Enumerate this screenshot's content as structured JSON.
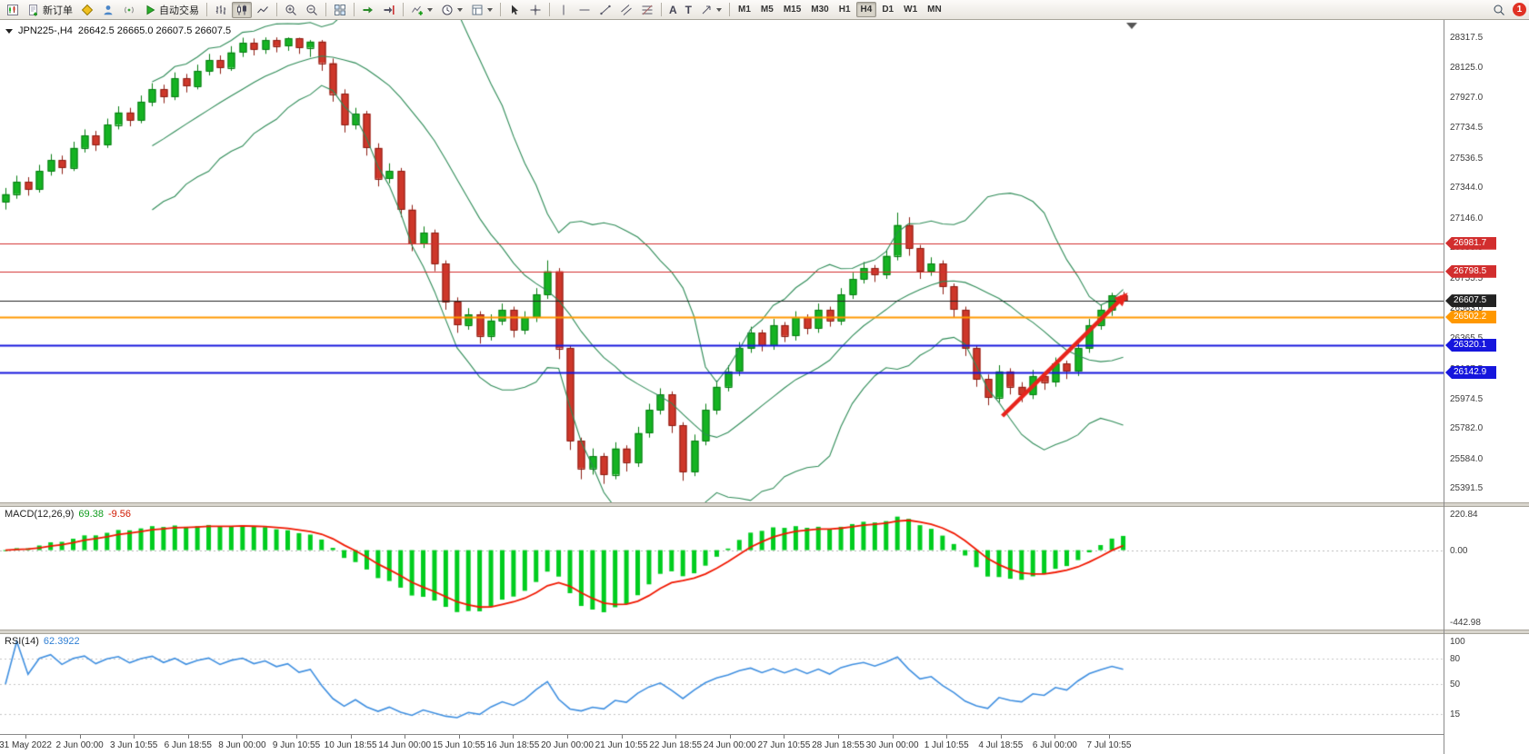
{
  "toolbar": {
    "new_order": "新订单",
    "autotrading": "自动交易",
    "text_tool": "A",
    "label_tool": "T",
    "timeframes": [
      "M1",
      "M5",
      "M15",
      "M30",
      "H1",
      "H4",
      "D1",
      "W1",
      "MN"
    ],
    "active_timeframe": "H4",
    "notification_count": "1"
  },
  "chart_data": {
    "type": "candlestick",
    "title": "JPN225-,H4",
    "ohlc_display": "26642.5 26665.0 26607.5 26607.5",
    "ylim": [
      25391.5,
      28317.5
    ],
    "y_axis_labels": [
      "28317.5",
      "28125.0",
      "27927.0",
      "27734.5",
      "27536.5",
      "27344.0",
      "27146.0",
      "26953.5",
      "26755.5",
      "26563.0",
      "26365.5",
      "26167.5",
      "25974.5",
      "25782.0",
      "25584.0",
      "25391.5"
    ],
    "x_labels": [
      "31 May 2022",
      "2 Jun 00:00",
      "3 Jun 10:55",
      "6 Jun 18:55",
      "8 Jun 00:00",
      "9 Jun 10:55",
      "10 Jun 18:55",
      "14 Jun 00:00",
      "15 Jun 10:55",
      "16 Jun 18:55",
      "20 Jun 00:00",
      "21 Jun 10:55",
      "22 Jun 18:55",
      "24 Jun 00:00",
      "27 Jun 10:55",
      "28 Jun 18:55",
      "30 Jun 00:00",
      "1 Jul 10:55",
      "4 Jul 18:55",
      "6 Jul 00:00",
      "7 Jul 10:55"
    ],
    "candle_colors": {
      "up_fill": "#15b322",
      "up_border": "#077d12",
      "down_fill": "#ce372a",
      "down_border": "#8c1d12"
    },
    "bollinger_color": "#2e8b57",
    "horizontal_lines": [
      {
        "price": 26981.7,
        "label": "26981.7",
        "color": "#d22e2e",
        "width": 1
      },
      {
        "price": 26798.5,
        "label": "26798.5",
        "color": "#d22e2e",
        "width": 1
      },
      {
        "price": 26607.5,
        "label": "26607.5",
        "color": "#222222",
        "width": 1
      },
      {
        "price": 26502.2,
        "label": "26502.2",
        "color": "#ff9800",
        "width": 2
      },
      {
        "price": 26320.1,
        "label": "26320.1",
        "color": "#1616dd",
        "width": 2
      },
      {
        "price": 26142.9,
        "label": "26142.9",
        "color": "#1616dd",
        "width": 2
      }
    ],
    "trend_arrow": {
      "from_bar": 88.3,
      "from_price": 25860,
      "to_bar": 99.4,
      "to_price": 26660,
      "color": "#e8241c"
    },
    "candles": [
      [
        27250,
        27340,
        27200,
        27300
      ],
      [
        27300,
        27420,
        27270,
        27380
      ],
      [
        27380,
        27410,
        27290,
        27330
      ],
      [
        27330,
        27490,
        27310,
        27450
      ],
      [
        27450,
        27560,
        27420,
        27520
      ],
      [
        27520,
        27550,
        27430,
        27470
      ],
      [
        27470,
        27640,
        27450,
        27600
      ],
      [
        27600,
        27720,
        27570,
        27680
      ],
      [
        27680,
        27710,
        27580,
        27620
      ],
      [
        27620,
        27790,
        27600,
        27750
      ],
      [
        27750,
        27870,
        27720,
        27830
      ],
      [
        27830,
        27860,
        27740,
        27780
      ],
      [
        27780,
        27940,
        27760,
        27900
      ],
      [
        27900,
        28020,
        27870,
        27980
      ],
      [
        27980,
        28010,
        27890,
        27930
      ],
      [
        27930,
        28090,
        27910,
        28050
      ],
      [
        28050,
        28080,
        27960,
        28000
      ],
      [
        28000,
        28140,
        27980,
        28100
      ],
      [
        28100,
        28210,
        28070,
        28170
      ],
      [
        28170,
        28200,
        28080,
        28120
      ],
      [
        28120,
        28260,
        28100,
        28220
      ],
      [
        28220,
        28315,
        28190,
        28280
      ],
      [
        28280,
        28310,
        28200,
        28240
      ],
      [
        28240,
        28317,
        28210,
        28300
      ],
      [
        28300,
        28317,
        28220,
        28260
      ],
      [
        28260,
        28317,
        28230,
        28310
      ],
      [
        28310,
        28315,
        28210,
        28250
      ],
      [
        28250,
        28300,
        28190,
        28290
      ],
      [
        28290,
        28300,
        28100,
        28150
      ],
      [
        28150,
        28180,
        27900,
        27950
      ],
      [
        27950,
        27980,
        27700,
        27750
      ],
      [
        27750,
        27860,
        27720,
        27820
      ],
      [
        27820,
        27840,
        27550,
        27600
      ],
      [
        27600,
        27630,
        27350,
        27400
      ],
      [
        27400,
        27500,
        27370,
        27450
      ],
      [
        27450,
        27470,
        27150,
        27200
      ],
      [
        27200,
        27230,
        26930,
        26980
      ],
      [
        26980,
        27090,
        26950,
        27050
      ],
      [
        27050,
        27070,
        26800,
        26850
      ],
      [
        26850,
        26870,
        26550,
        26600
      ],
      [
        26600,
        26630,
        26400,
        26450
      ],
      [
        26450,
        26560,
        26420,
        26520
      ],
      [
        26520,
        26540,
        26330,
        26380
      ],
      [
        26380,
        26520,
        26350,
        26480
      ],
      [
        26480,
        26590,
        26450,
        26550
      ],
      [
        26550,
        26570,
        26370,
        26420
      ],
      [
        26420,
        26540,
        26390,
        26500
      ],
      [
        26500,
        26690,
        26470,
        26650
      ],
      [
        26650,
        26870,
        26620,
        26800
      ],
      [
        26800,
        26820,
        26230,
        26300
      ],
      [
        26300,
        26320,
        25640,
        25700
      ],
      [
        25700,
        25720,
        25450,
        25520
      ],
      [
        25520,
        25650,
        25480,
        25600
      ],
      [
        25600,
        25620,
        25420,
        25480
      ],
      [
        25480,
        25690,
        25450,
        25650
      ],
      [
        25650,
        25670,
        25500,
        25560
      ],
      [
        25560,
        25790,
        25530,
        25750
      ],
      [
        25750,
        25940,
        25720,
        25900
      ],
      [
        25900,
        26040,
        25870,
        26000
      ],
      [
        26000,
        26020,
        25750,
        25800
      ],
      [
        25800,
        25820,
        25440,
        25500
      ],
      [
        25500,
        25740,
        25470,
        25700
      ],
      [
        25700,
        25940,
        25670,
        25900
      ],
      [
        25900,
        26090,
        25870,
        26050
      ],
      [
        26050,
        26190,
        26020,
        26150
      ],
      [
        26150,
        26340,
        26120,
        26300
      ],
      [
        26300,
        26440,
        26270,
        26400
      ],
      [
        26400,
        26420,
        26280,
        26320
      ],
      [
        26320,
        26490,
        26290,
        26450
      ],
      [
        26450,
        26470,
        26340,
        26380
      ],
      [
        26380,
        26540,
        26350,
        26500
      ],
      [
        26500,
        26520,
        26390,
        26430
      ],
      [
        26430,
        26590,
        26400,
        26550
      ],
      [
        26550,
        26570,
        26440,
        26480
      ],
      [
        26480,
        26690,
        26450,
        26650
      ],
      [
        26650,
        26790,
        26620,
        26750
      ],
      [
        26750,
        26860,
        26720,
        26820
      ],
      [
        26820,
        26840,
        26730,
        26780
      ],
      [
        26780,
        26940,
        26750,
        26900
      ],
      [
        26900,
        27180,
        26870,
        27100
      ],
      [
        27100,
        27150,
        26900,
        26950
      ],
      [
        26950,
        26970,
        26750,
        26800
      ],
      [
        26800,
        26890,
        26770,
        26850
      ],
      [
        26850,
        26870,
        26650,
        26700
      ],
      [
        26700,
        26720,
        26500,
        26550
      ],
      [
        26550,
        26570,
        26250,
        26300
      ],
      [
        26300,
        26320,
        26050,
        26100
      ],
      [
        26100,
        26130,
        25930,
        25980
      ],
      [
        25980,
        26190,
        25950,
        26150
      ],
      [
        26150,
        26170,
        26000,
        26050
      ],
      [
        26050,
        26080,
        25950,
        26000
      ],
      [
        26000,
        26160,
        25970,
        26120
      ],
      [
        26120,
        26150,
        26030,
        26080
      ],
      [
        26080,
        26240,
        26050,
        26200
      ],
      [
        26200,
        26220,
        26100,
        26150
      ],
      [
        26150,
        26340,
        26120,
        26300
      ],
      [
        26300,
        26490,
        26270,
        26450
      ],
      [
        26450,
        26580,
        26420,
        26550
      ],
      [
        26550,
        26660,
        26510,
        26642.5
      ],
      [
        26642.5,
        26665,
        26607.5,
        26607.5
      ]
    ],
    "panels": {
      "macd": {
        "type": "bar",
        "label": "MACD(12,26,9)",
        "value": "69.38",
        "signal_value": "-9.56",
        "scale_labels": [
          "220.84",
          "0.00",
          "-442.98"
        ],
        "scale_values": [
          220.84,
          0,
          -442.98
        ],
        "hist_color": "#00cd1f",
        "signal_color": "#f01800"
      },
      "rsi": {
        "type": "line",
        "label": "RSI(14)",
        "value": "62.3922",
        "scale_labels": [
          "100",
          "80",
          "50",
          "15"
        ],
        "scale_values": [
          100,
          80,
          50,
          15
        ],
        "line_color": "#3f8fe0"
      }
    }
  }
}
